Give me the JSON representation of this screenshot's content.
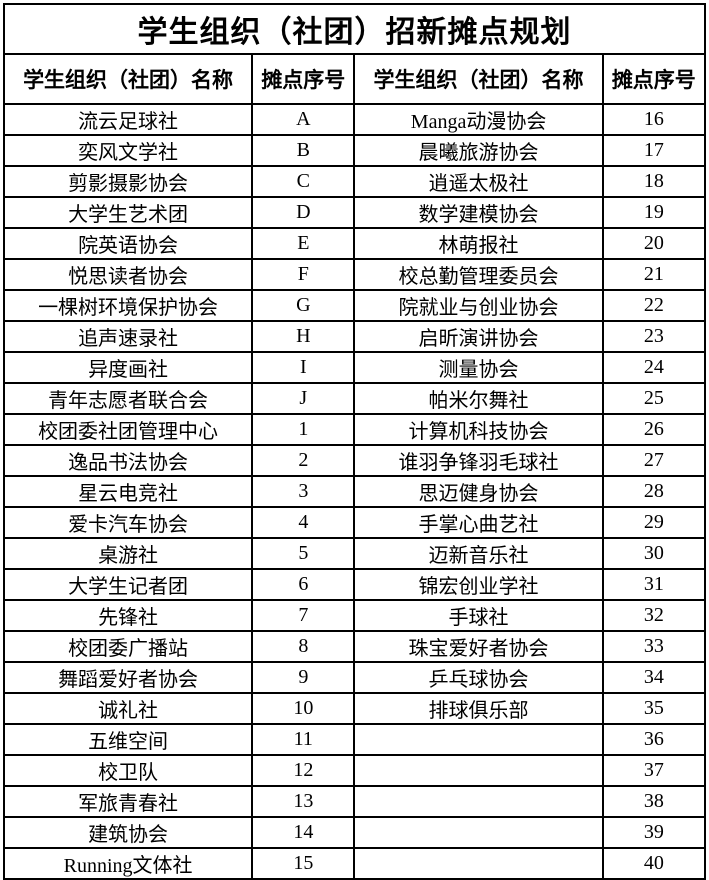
{
  "table": {
    "title": "学生组织（社团）招新摊点规划",
    "headers": [
      "学生组织（社团）名称",
      "摊点序号",
      "学生组织（社团）名称",
      "摊点序号"
    ],
    "rows": [
      {
        "left_name": "流云足球社",
        "left_no": "A",
        "right_name": "Manga动漫协会",
        "right_no": "16"
      },
      {
        "left_name": "奕风文学社",
        "left_no": "B",
        "right_name": "晨曦旅游协会",
        "right_no": "17"
      },
      {
        "left_name": "剪影摄影协会",
        "left_no": "C",
        "right_name": "逍遥太极社",
        "right_no": "18"
      },
      {
        "left_name": "大学生艺术团",
        "left_no": "D",
        "right_name": "数学建模协会",
        "right_no": "19"
      },
      {
        "left_name": "院英语协会",
        "left_no": "E",
        "right_name": "林萌报社",
        "right_no": "20"
      },
      {
        "left_name": "悦思读者协会",
        "left_no": "F",
        "right_name": "校总勤管理委员会",
        "right_no": "21"
      },
      {
        "left_name": "一棵树环境保护协会",
        "left_no": "G",
        "right_name": "院就业与创业协会",
        "right_no": "22"
      },
      {
        "left_name": "追声速录社",
        "left_no": "H",
        "right_name": "启昕演讲协会",
        "right_no": "23"
      },
      {
        "left_name": "异度画社",
        "left_no": "I",
        "right_name": "测量协会",
        "right_no": "24"
      },
      {
        "left_name": "青年志愿者联合会",
        "left_no": "J",
        "right_name": "帕米尔舞社",
        "right_no": "25"
      },
      {
        "left_name": "校团委社团管理中心",
        "left_no": "1",
        "right_name": "计算机科技协会",
        "right_no": "26"
      },
      {
        "left_name": "逸品书法协会",
        "left_no": "2",
        "right_name": "谁羽争锋羽毛球社",
        "right_no": "27"
      },
      {
        "left_name": "星云电竞社",
        "left_no": "3",
        "right_name": "思迈健身协会",
        "right_no": "28"
      },
      {
        "left_name": "爱卡汽车协会",
        "left_no": "4",
        "right_name": "手掌心曲艺社",
        "right_no": "29"
      },
      {
        "left_name": "桌游社",
        "left_no": "5",
        "right_name": "迈新音乐社",
        "right_no": "30"
      },
      {
        "left_name": "大学生记者团",
        "left_no": "6",
        "right_name": "锦宏创业学社",
        "right_no": "31"
      },
      {
        "left_name": "先锋社",
        "left_no": "7",
        "right_name": "手球社",
        "right_no": "32"
      },
      {
        "left_name": "校团委广播站",
        "left_no": "8",
        "right_name": "珠宝爱好者协会",
        "right_no": "33"
      },
      {
        "left_name": "舞蹈爱好者协会",
        "left_no": "9",
        "right_name": "乒乓球协会",
        "right_no": "34"
      },
      {
        "left_name": "诚礼社",
        "left_no": "10",
        "right_name": "排球俱乐部",
        "right_no": "35"
      },
      {
        "left_name": "五维空间",
        "left_no": "11",
        "right_name": "",
        "right_no": "36"
      },
      {
        "left_name": "校卫队",
        "left_no": "12",
        "right_name": "",
        "right_no": "37"
      },
      {
        "left_name": "军旅青春社",
        "left_no": "13",
        "right_name": "",
        "right_no": "38"
      },
      {
        "left_name": "建筑协会",
        "left_no": "14",
        "right_name": "",
        "right_no": "39"
      },
      {
        "left_name": "Running文体社",
        "left_no": "15",
        "right_name": "",
        "right_no": "40"
      }
    ],
    "colors": {
      "border": "#000000",
      "text": "#000000",
      "background": "#ffffff"
    }
  }
}
